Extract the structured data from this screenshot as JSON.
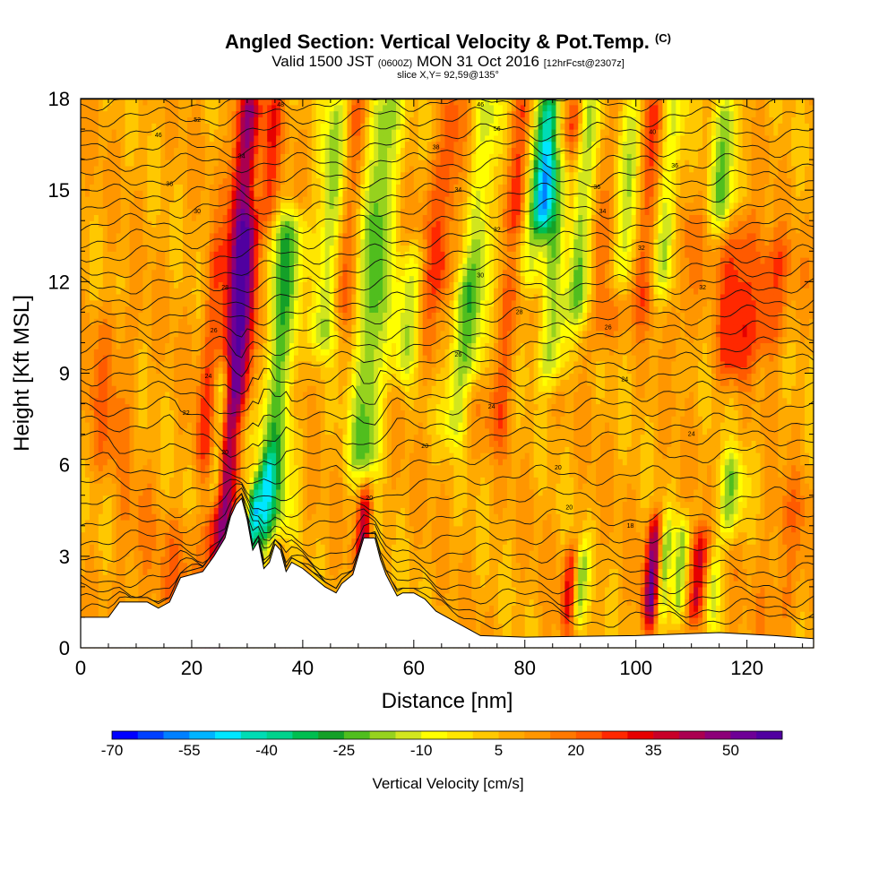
{
  "header": {
    "title": "Angled Section: Vertical Velocity & Pot.Temp.",
    "title_tag": "(C)",
    "valid_a": "Valid 1500 JST",
    "valid_b": "(0600Z)",
    "valid_c": "MON 31 Oct 2016",
    "valid_d": "[12hrFcst@2307z]",
    "slice": "slice X,Y= 92,59@135°"
  },
  "chart_data": {
    "type": "heatmap",
    "xlabel": "Distance [nm]",
    "ylabel": "Height [Kft MSL]",
    "xlim": [
      0,
      132
    ],
    "ylim": [
      0,
      18
    ],
    "x_ticks": [
      0,
      20,
      40,
      60,
      80,
      100,
      120
    ],
    "y_ticks": [
      0,
      3,
      6,
      9,
      12,
      15,
      18
    ],
    "colorbar": {
      "label": "Vertical Velocity [cm/s]",
      "range": [
        -70,
        60
      ],
      "step": 5,
      "tick_labels": [
        "-70",
        "-55",
        "-40",
        "-25",
        "-10",
        "5",
        "20",
        "35",
        "50"
      ],
      "colors": [
        "#0000ff",
        "#0040ff",
        "#0080ff",
        "#00b4ff",
        "#00e6ff",
        "#00dcb4",
        "#00d28c",
        "#00be50",
        "#14a028",
        "#50be1e",
        "#96d21e",
        "#d2e61e",
        "#ffff00",
        "#ffe600",
        "#ffc800",
        "#ffaa00",
        "#ff9600",
        "#ff7800",
        "#ff5a00",
        "#ff2800",
        "#e60000",
        "#c80028",
        "#aa0050",
        "#8c0078",
        "#6e0096",
        "#5000a0"
      ]
    },
    "terrain_kft": [
      [
        0,
        1.0
      ],
      [
        5,
        1.0
      ],
      [
        7,
        1.5
      ],
      [
        12,
        1.5
      ],
      [
        14,
        1.3
      ],
      [
        16,
        1.5
      ],
      [
        18,
        2.3
      ],
      [
        22,
        2.5
      ],
      [
        24,
        3.0
      ],
      [
        26,
        3.6
      ],
      [
        27,
        4.3
      ],
      [
        28,
        4.7
      ],
      [
        29,
        4.9
      ],
      [
        30,
        4.2
      ],
      [
        31,
        3.2
      ],
      [
        32,
        3.5
      ],
      [
        33,
        2.6
      ],
      [
        34,
        2.8
      ],
      [
        35,
        3.4
      ],
      [
        36,
        3.2
      ],
      [
        37,
        2.5
      ],
      [
        38,
        2.8
      ],
      [
        40,
        2.6
      ],
      [
        42,
        2.3
      ],
      [
        44,
        2.0
      ],
      [
        46,
        1.8
      ],
      [
        47,
        2.1
      ],
      [
        49,
        2.4
      ],
      [
        50,
        3.0
      ],
      [
        51,
        3.6
      ],
      [
        53,
        3.6
      ],
      [
        54,
        2.9
      ],
      [
        55,
        2.4
      ],
      [
        57,
        1.7
      ],
      [
        58,
        1.8
      ],
      [
        60,
        1.8
      ],
      [
        62,
        1.6
      ],
      [
        64,
        1.2
      ],
      [
        66,
        1.0
      ],
      [
        68,
        0.8
      ],
      [
        70,
        0.6
      ],
      [
        72,
        0.4
      ],
      [
        80,
        0.35
      ],
      [
        100,
        0.4
      ],
      [
        115,
        0.5
      ],
      [
        125,
        0.4
      ],
      [
        132,
        0.3
      ]
    ],
    "streaks": [
      {
        "x": 27,
        "w": 1.6,
        "v": 45,
        "y0": 0,
        "y1": 18
      },
      {
        "x": 23,
        "w": 1.2,
        "v": 20,
        "y0": 6,
        "y1": 13
      },
      {
        "x": 25,
        "w": 1.0,
        "v": -25,
        "y0": 5,
        "y1": 9
      },
      {
        "x": 30,
        "w": 1.4,
        "v": 30,
        "y0": 8,
        "y1": 14
      },
      {
        "x": 36,
        "w": 2.2,
        "v": -25,
        "y0": 4,
        "y1": 14
      },
      {
        "x": 33,
        "w": 1.0,
        "v": -20,
        "y0": 3,
        "y1": 6
      },
      {
        "x": 31,
        "w": 0.8,
        "v": -40,
        "y0": 3,
        "y1": 5
      },
      {
        "x": 34,
        "w": 1.2,
        "v": 25,
        "y0": 14,
        "y1": 18
      },
      {
        "x": 40,
        "w": 1.4,
        "v": 15,
        "y0": 8,
        "y1": 12
      },
      {
        "x": 45,
        "w": 1.6,
        "v": -20,
        "y0": 10,
        "y1": 18
      },
      {
        "x": 48,
        "w": 1.4,
        "v": 20,
        "y0": 11,
        "y1": 18
      },
      {
        "x": 51,
        "w": 0.9,
        "v": 35,
        "y0": 3,
        "y1": 5
      },
      {
        "x": 53,
        "w": 2.0,
        "v": -25,
        "y0": 6,
        "y1": 18
      },
      {
        "x": 59,
        "w": 1.6,
        "v": -15,
        "y0": 9,
        "y1": 13
      },
      {
        "x": 63,
        "w": 2.0,
        "v": 15,
        "y0": 9,
        "y1": 16
      },
      {
        "x": 66,
        "w": 1.4,
        "v": 20,
        "y0": 12,
        "y1": 18
      },
      {
        "x": 68,
        "w": 1.4,
        "v": -15,
        "y0": 7,
        "y1": 12
      },
      {
        "x": 72,
        "w": 1.8,
        "v": -15,
        "y0": 9,
        "y1": 18
      },
      {
        "x": 76,
        "w": 1.6,
        "v": 20,
        "y0": 7,
        "y1": 12
      },
      {
        "x": 79,
        "w": 1.5,
        "v": 25,
        "y0": 14,
        "y1": 18
      },
      {
        "x": 82,
        "w": 1.4,
        "v": -15,
        "y0": 12,
        "y1": 18
      },
      {
        "x": 84,
        "w": 1.2,
        "v": -40,
        "y0": 14,
        "y1": 18
      },
      {
        "x": 86,
        "w": 2.0,
        "v": -20,
        "y0": 9,
        "y1": 16
      },
      {
        "x": 88,
        "w": 1.0,
        "v": 20,
        "y0": 12,
        "y1": 18
      },
      {
        "x": 91,
        "w": 1.5,
        "v": -15,
        "y0": 11,
        "y1": 18
      },
      {
        "x": 95,
        "w": 1.6,
        "v": 20,
        "y0": 10,
        "y1": 18
      },
      {
        "x": 98,
        "w": 1.5,
        "v": -20,
        "y0": 12,
        "y1": 18
      },
      {
        "x": 102,
        "w": 1.6,
        "v": 20,
        "y0": 11,
        "y1": 18
      },
      {
        "x": 106,
        "w": 1.4,
        "v": -15,
        "y0": 12,
        "y1": 18
      },
      {
        "x": 109,
        "w": 1.6,
        "v": 15,
        "y0": 10,
        "y1": 14
      },
      {
        "x": 116,
        "w": 1.6,
        "v": -20,
        "y0": 14,
        "y1": 18
      },
      {
        "x": 118,
        "w": 2.2,
        "v": 25,
        "y0": 9,
        "y1": 14
      },
      {
        "x": 124,
        "w": 2.5,
        "v": 25,
        "y0": 10,
        "y1": 13
      },
      {
        "x": 88,
        "w": 0.9,
        "v": 30,
        "y0": 1,
        "y1": 3
      },
      {
        "x": 90,
        "w": 0.9,
        "v": -20,
        "y0": 1,
        "y1": 3
      },
      {
        "x": 103,
        "w": 1.0,
        "v": 45,
        "y0": 1,
        "y1": 4
      },
      {
        "x": 105,
        "w": 0.8,
        "v": -20,
        "y0": 1,
        "y1": 4
      },
      {
        "x": 108,
        "w": 0.8,
        "v": -20,
        "y0": 1,
        "y1": 4
      },
      {
        "x": 111,
        "w": 1.0,
        "v": 40,
        "y0": 1,
        "y1": 3.5
      },
      {
        "x": 114,
        "w": 0.8,
        "v": -15,
        "y0": 1,
        "y1": 3
      },
      {
        "x": 117,
        "w": 1.6,
        "v": -20,
        "y0": 4,
        "y1": 6
      },
      {
        "x": 18,
        "w": 3.0,
        "v": 15,
        "y0": 1,
        "y1": 4
      },
      {
        "x": 9,
        "w": 2.5,
        "v": 12,
        "y0": 1,
        "y1": 5
      },
      {
        "x": 127,
        "w": 3.0,
        "v": 15,
        "y0": 1,
        "y1": 5
      },
      {
        "x": 5,
        "w": 3.0,
        "v": 15,
        "y0": 6,
        "y1": 11
      }
    ],
    "contour_labels": [
      {
        "x": 21,
        "y": 17.3,
        "t": "52"
      },
      {
        "x": 36,
        "y": 17.8,
        "t": "48"
      },
      {
        "x": 72,
        "y": 17.8,
        "t": "46"
      },
      {
        "x": 14,
        "y": 16.8,
        "t": "46"
      },
      {
        "x": 75,
        "y": 17.0,
        "t": "56"
      },
      {
        "x": 103,
        "y": 16.9,
        "t": "40"
      },
      {
        "x": 29,
        "y": 16.1,
        "t": "34"
      },
      {
        "x": 64,
        "y": 16.4,
        "t": "38"
      },
      {
        "x": 107,
        "y": 15.8,
        "t": "36"
      },
      {
        "x": 16,
        "y": 15.2,
        "t": "36"
      },
      {
        "x": 68,
        "y": 15.0,
        "t": "34"
      },
      {
        "x": 93,
        "y": 15.1,
        "t": "36"
      },
      {
        "x": 21,
        "y": 14.3,
        "t": "30"
      },
      {
        "x": 94,
        "y": 14.3,
        "t": "34"
      },
      {
        "x": 75,
        "y": 13.7,
        "t": "32"
      },
      {
        "x": 101,
        "y": 13.1,
        "t": "32"
      },
      {
        "x": 26,
        "y": 11.8,
        "t": "28"
      },
      {
        "x": 72,
        "y": 12.2,
        "t": "30"
      },
      {
        "x": 112,
        "y": 11.8,
        "t": "32"
      },
      {
        "x": 79,
        "y": 11.0,
        "t": "28"
      },
      {
        "x": 24,
        "y": 10.4,
        "t": "26"
      },
      {
        "x": 95,
        "y": 10.5,
        "t": "26"
      },
      {
        "x": 68,
        "y": 9.6,
        "t": "26"
      },
      {
        "x": 23,
        "y": 8.9,
        "t": "24"
      },
      {
        "x": 98,
        "y": 8.8,
        "t": "24"
      },
      {
        "x": 74,
        "y": 7.9,
        "t": "24"
      },
      {
        "x": 19,
        "y": 7.7,
        "t": "22"
      },
      {
        "x": 110,
        "y": 7.0,
        "t": "24"
      },
      {
        "x": 26,
        "y": 6.4,
        "t": "20"
      },
      {
        "x": 62,
        "y": 6.6,
        "t": "20"
      },
      {
        "x": 86,
        "y": 5.9,
        "t": "20"
      },
      {
        "x": 52,
        "y": 4.9,
        "t": "20"
      },
      {
        "x": 88,
        "y": 4.6,
        "t": "20"
      },
      {
        "x": 99,
        "y": 4.0,
        "t": "18"
      }
    ]
  }
}
